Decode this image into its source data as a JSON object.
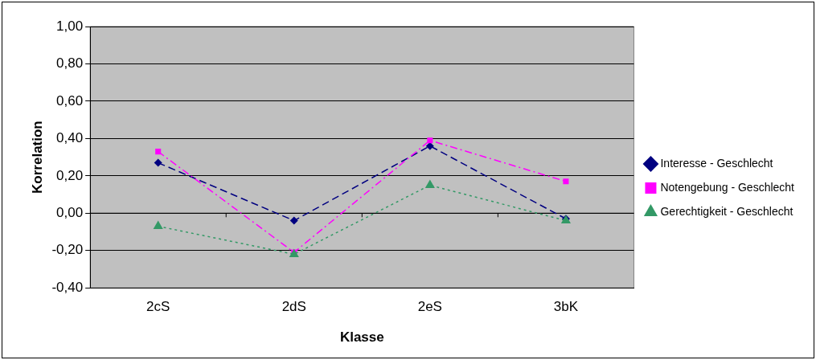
{
  "chart_data": {
    "type": "line",
    "xlabel": "Klasse",
    "ylabel": "Korrelation",
    "categories": [
      "2cS",
      "2dS",
      "2eS",
      "3bK"
    ],
    "series": [
      {
        "name": "Interesse - Geschlecht",
        "color": "#000080",
        "values": [
          0.27,
          -0.04,
          0.36,
          -0.03
        ],
        "marker": "diamond",
        "line_style": "dashed"
      },
      {
        "name": "Notengebung - Geschlecht",
        "color": "#ff00ff",
        "values": [
          0.33,
          -0.21,
          0.39,
          0.17
        ],
        "marker": "square",
        "line_style": "dashdot"
      },
      {
        "name": "Gerechtigkeit - Geschlecht",
        "color": "#339966",
        "values": [
          -0.07,
          -0.22,
          0.15,
          -0.04
        ],
        "marker": "triangle",
        "line_style": "dotted"
      }
    ],
    "ylim": [
      -0.4,
      1.0
    ],
    "yticks": [
      {
        "value": -0.4,
        "label": "-0,40"
      },
      {
        "value": -0.2,
        "label": "-0,20"
      },
      {
        "value": 0,
        "label": "0,00"
      },
      {
        "value": 0.2,
        "label": "0,20"
      },
      {
        "value": 0.4,
        "label": "0,40"
      },
      {
        "value": 0.6,
        "label": "0,60"
      },
      {
        "value": 0.8,
        "label": "0,80"
      },
      {
        "value": 1.0,
        "label": "1,00"
      }
    ],
    "grid": "y",
    "legend": "right"
  }
}
